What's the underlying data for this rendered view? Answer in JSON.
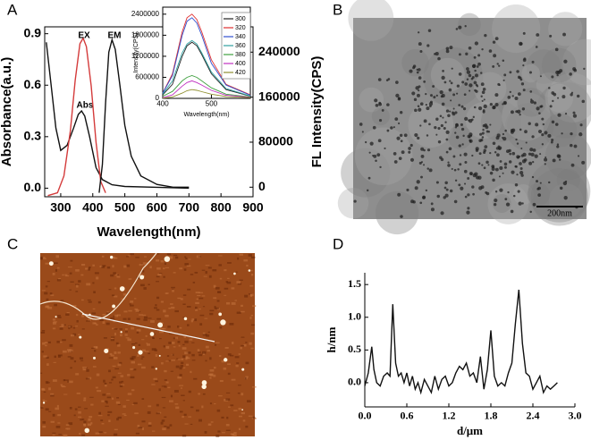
{
  "figure": {
    "panel_labels": [
      "A",
      "B",
      "C",
      "D"
    ],
    "scale_bar": "200nm"
  },
  "chart_data": [
    {
      "type": "line",
      "x_label": "Wavelength(nm)",
      "y_label": "Absorbance(a.u.)",
      "y2_label": "FL Intensity(CPS)",
      "xlim": [
        250,
        900
      ],
      "xticks": [
        300,
        400,
        500,
        600,
        700,
        800,
        900
      ],
      "ylim": [
        -0.05,
        0.94
      ],
      "yticks": [
        {
          "value": 0,
          "label": "0.0"
        },
        0.3,
        0.6,
        0.9
      ],
      "y2lim": [
        -17000,
        285000
      ],
      "y2ticks": [
        0,
        80000,
        160000,
        240000
      ],
      "series": [
        {
          "name": "Abs",
          "color": "#111111",
          "x": [
            255,
            270,
            285,
            300,
            320,
            340,
            355,
            365,
            375,
            390,
            410,
            430,
            460,
            500,
            600,
            700
          ],
          "values": [
            0.85,
            0.6,
            0.35,
            0.22,
            0.25,
            0.35,
            0.43,
            0.45,
            0.42,
            0.3,
            0.12,
            0.05,
            0.02,
            0.01,
            0.005,
            0
          ]
        },
        {
          "name": "EX",
          "color": "#d43b3b",
          "axis": "y2",
          "x": [
            260,
            290,
            310,
            330,
            345,
            360,
            370,
            380,
            395,
            410,
            425,
            440
          ],
          "values": [
            -15000,
            -10000,
            20000,
            100000,
            190000,
            255000,
            265000,
            250000,
            180000,
            80000,
            10000,
            -10000
          ]
        },
        {
          "name": "EM",
          "color": "#111111",
          "axis": "y2",
          "x": [
            420,
            430,
            440,
            450,
            460,
            470,
            485,
            500,
            520,
            550,
            600,
            650,
            700
          ],
          "values": [
            -10000,
            40000,
            150000,
            240000,
            262000,
            245000,
            180000,
            110000,
            55000,
            20000,
            5000,
            0,
            0
          ]
        }
      ]
    },
    {
      "type": "line",
      "x_label": "Wavelength(nm)",
      "y_label": "Intensity(CPS)",
      "xlim": [
        400,
        580
      ],
      "xticks": [
        400,
        500
      ],
      "ylim": [
        0,
        2600000
      ],
      "yticks": [
        0,
        600000,
        1200000,
        1800000,
        2400000
      ],
      "x": [
        400,
        420,
        440,
        450,
        460,
        470,
        480,
        500,
        530,
        580
      ],
      "series": [
        {
          "name": "300",
          "color": "#222222",
          "values": [
            100000,
            400000,
            1200000,
            1500000,
            1600000,
            1500000,
            1250000,
            700000,
            250000,
            60000
          ]
        },
        {
          "name": "320",
          "color": "#e03030",
          "values": [
            150000,
            700000,
            1900000,
            2300000,
            2400000,
            2250000,
            1900000,
            1100000,
            400000,
            100000
          ]
        },
        {
          "name": "340",
          "color": "#3050d0",
          "values": [
            150000,
            650000,
            1800000,
            2200000,
            2300000,
            2150000,
            1800000,
            1000000,
            380000,
            90000
          ]
        },
        {
          "name": "360",
          "color": "#30a0a0",
          "values": [
            120000,
            500000,
            1300000,
            1550000,
            1650000,
            1550000,
            1300000,
            750000,
            280000,
            70000
          ]
        },
        {
          "name": "380",
          "color": "#40a040",
          "values": [
            60000,
            200000,
            500000,
            600000,
            650000,
            600000,
            500000,
            300000,
            120000,
            40000
          ]
        },
        {
          "name": "400",
          "color": "#c030c0",
          "values": [
            20000,
            100000,
            350000,
            450000,
            500000,
            450000,
            380000,
            230000,
            90000,
            30000
          ]
        },
        {
          "name": "420",
          "color": "#909030",
          "values": [
            5000,
            40000,
            150000,
            220000,
            250000,
            230000,
            190000,
            120000,
            50000,
            20000
          ]
        }
      ]
    },
    {
      "type": "line",
      "x_label": "d/μm",
      "y_label": "h/nm",
      "xlim": [
        0,
        3
      ],
      "xticks": [
        {
          "value": 0,
          "label": "0.0"
        },
        0.6,
        1.2,
        1.8,
        2.4,
        {
          "value": 3,
          "label": "3.0"
        }
      ],
      "ylim": [
        -0.37,
        1.68
      ],
      "yticks": [
        {
          "value": 0,
          "label": "0.0"
        },
        0.5,
        {
          "value": 1,
          "label": "1.0"
        },
        1.5
      ],
      "series": [
        {
          "color": "#111111",
          "x": [
            0,
            0.05,
            0.1,
            0.13,
            0.17,
            0.22,
            0.27,
            0.32,
            0.36,
            0.4,
            0.44,
            0.48,
            0.52,
            0.56,
            0.6,
            0.64,
            0.68,
            0.72,
            0.76,
            0.8,
            0.85,
            0.9,
            0.95,
            1.0,
            1.05,
            1.1,
            1.15,
            1.2,
            1.25,
            1.3,
            1.35,
            1.4,
            1.45,
            1.5,
            1.55,
            1.6,
            1.65,
            1.7,
            1.75,
            1.8,
            1.85,
            1.9,
            1.95,
            2.0,
            2.05,
            2.1,
            2.15,
            2.2,
            2.25,
            2.3,
            2.35,
            2.4,
            2.45,
            2.5,
            2.55,
            2.6,
            2.65,
            2.7,
            2.75
          ],
          "values": [
            -0.05,
            0.15,
            0.55,
            0.2,
            0,
            -0.05,
            0.1,
            0.15,
            0.1,
            1.2,
            0.3,
            0.1,
            0.15,
            0,
            0.15,
            -0.05,
            0.1,
            -0.1,
            0,
            -0.15,
            0.05,
            -0.05,
            -0.15,
            0.1,
            -0.1,
            0.05,
            0.1,
            -0.05,
            0,
            0.15,
            0.25,
            0.2,
            0.3,
            0.1,
            0.15,
            0,
            0.4,
            -0.1,
            0.2,
            0.8,
            0.1,
            -0.05,
            0,
            -0.05,
            0.15,
            0.3,
            0.9,
            1.42,
            0.6,
            0.15,
            0.1,
            -0.1,
            0,
            0.1,
            -0.15,
            -0.05,
            -0.1,
            -0.05,
            0
          ]
        }
      ]
    }
  ]
}
